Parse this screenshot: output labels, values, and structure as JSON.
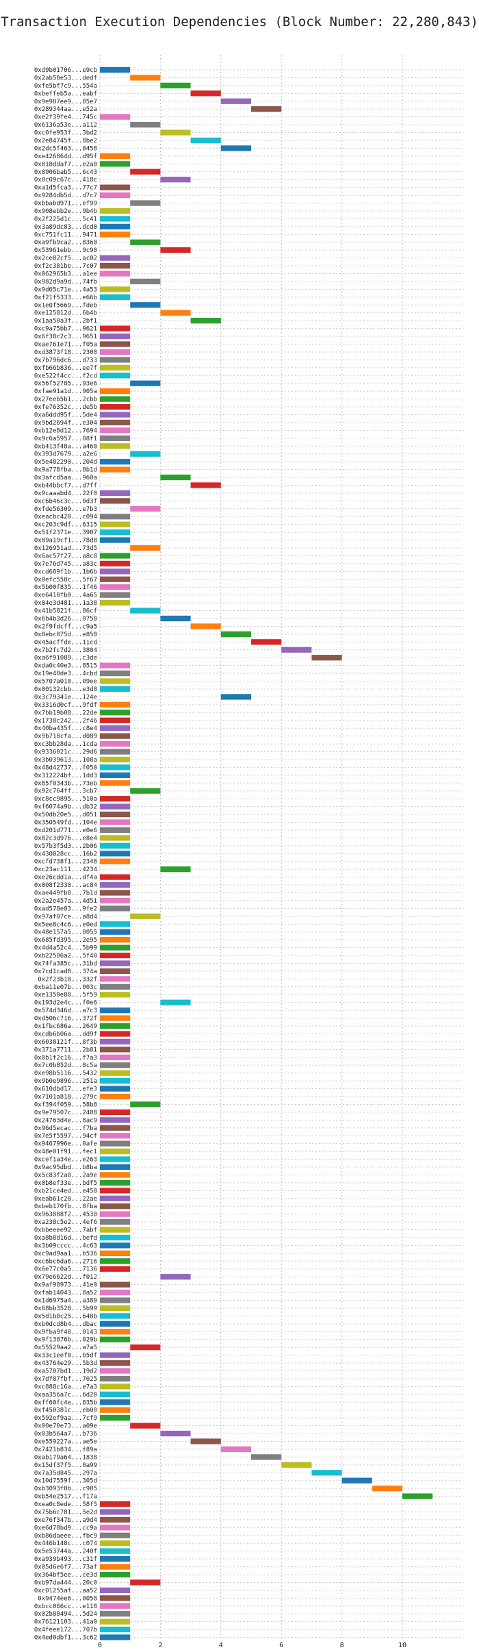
{
  "chart_data": {
    "type": "gantt",
    "title": "Transaction Execution Dependencies (Block Number: 22,280,843)",
    "xlabel": "",
    "ylabel": "",
    "xlim": [
      0,
      11.8
    ],
    "xticks": [
      0,
      2,
      4,
      6,
      8,
      10
    ],
    "grid": true,
    "legend": "none",
    "transactions": [
      [
        "0xd9b01706...e9cb",
        0
      ],
      [
        "0x2ab50e53...dedf",
        1
      ],
      [
        "0xfe5bf7c9...554a",
        2
      ],
      [
        "0xbeffeb5a...eabf",
        3
      ],
      [
        "0x9e987ee9...85e7",
        4
      ],
      [
        "0x289344aa...e52a",
        5
      ],
      [
        "0xe2f39fe4...745c",
        0
      ],
      [
        "0x6136a53e...a112",
        1
      ],
      [
        "0xc0fe953f...3bd2",
        2
      ],
      [
        "0x2e84745f...8be2",
        3
      ],
      [
        "0x2dc5f463...0458",
        4
      ],
      [
        "0xe426864d...d95f",
        0
      ],
      [
        "0x818ddaf7...e2a0",
        0
      ],
      [
        "0x8906bab5...6c43",
        1
      ],
      [
        "0x8c09c67c...418c",
        2
      ],
      [
        "0xa1d5fca3...77c7",
        0
      ],
      [
        "0x9284db5d...d7c7",
        0
      ],
      [
        "0xbbabd971...ef99",
        1
      ],
      [
        "0x908ebb2e...9b4b",
        0
      ],
      [
        "0x2f225d1c...5c41",
        0
      ],
      [
        "0x3a89dc83...dcd0",
        0
      ],
      [
        "0xc751fc11...9471",
        0
      ],
      [
        "0xa9fb9ca2...8360",
        1
      ],
      [
        "0x53961ebb...9c90",
        2
      ],
      [
        "0x2ce82cf5...ac02",
        0
      ],
      [
        "0xf2c381be...7c07",
        0
      ],
      [
        "0x062965b3...a1ee",
        0
      ],
      [
        "0x982d9a9d...74fb",
        1
      ],
      [
        "0x9d65c71e...4a53",
        0
      ],
      [
        "0xf21f5333...e66b",
        0
      ],
      [
        "0x1e0f5669...fdeb",
        1
      ],
      [
        "0xe125812d...6b4b",
        2
      ],
      [
        "0x1aa50a3f...2bf1",
        3
      ],
      [
        "0xc9a75bb7...9621",
        0
      ],
      [
        "0x6f38c2c3...9651",
        0
      ],
      [
        "0xae761e71...f05a",
        0
      ],
      [
        "0xd3873f18...2300",
        0
      ],
      [
        "0x7b796dc6...d733",
        0
      ],
      [
        "0xfb66b836...ee7f",
        0
      ],
      [
        "0xe522f4cc...f2cd",
        0
      ],
      [
        "0x56f52785...93e6",
        1
      ],
      [
        "0xfae91a1d...905a",
        0
      ],
      [
        "0x27eeb5b1...2cbb",
        0
      ],
      [
        "0xfe76352c...de5b",
        0
      ],
      [
        "0xa6ddd95f...5de4",
        0
      ],
      [
        "0x9bd2694f...e304",
        0
      ],
      [
        "0xb12e8d12...7694",
        0
      ],
      [
        "0x9c6a5957...08f1",
        0
      ],
      [
        "0xb413f48a...a460",
        0
      ],
      [
        "0x393d7679...a2e6",
        1
      ],
      [
        "0x5e482290...204d",
        0
      ],
      [
        "0x9a778fba...8b1d",
        0
      ],
      [
        "0x3afcd5aa...960a",
        2
      ],
      [
        "0xb44bbcf7...d7ff",
        3
      ],
      [
        "0x9caaabd4...22f0",
        0
      ],
      [
        "0xc6b46c3c...0d3f",
        0
      ],
      [
        "0xfde56309...e7b3",
        1
      ],
      [
        "0xeacbc420...c094",
        0
      ],
      [
        "0xc203c9df...6315",
        0
      ],
      [
        "0x51f2371e...3907",
        0
      ],
      [
        "0x89a19cf1...78d8",
        0
      ],
      [
        "0x126951ad...73d5",
        1
      ],
      [
        "0x6ac57f27...a8c8",
        0
      ],
      [
        "0x7e76d745...a83c",
        0
      ],
      [
        "0xcd689f1b...1b6b",
        0
      ],
      [
        "0x0efc558c...5f67",
        0
      ],
      [
        "0x5b00f835...1f46",
        0
      ],
      [
        "0xe6410fb0...4a65",
        0
      ],
      [
        "0x84e3d481...1a38",
        0
      ],
      [
        "0x41b5821f...86cf",
        1
      ],
      [
        "0x6b4b3d26...0750",
        2
      ],
      [
        "0x2f9fdcff...c9a5",
        3
      ],
      [
        "0x8ebc875d...e850",
        4
      ],
      [
        "0x45acffde...11cd",
        5
      ],
      [
        "0x7b2fc7d2...3804",
        6
      ],
      [
        "0xa6f91089...c3de",
        7
      ],
      [
        "0xda0c40e3...8515",
        0
      ],
      [
        "0x19e40de3...4cbd",
        0
      ],
      [
        "0x5707a010...09ee",
        0
      ],
      [
        "0x00132cbb...e3d8",
        0
      ],
      [
        "0x3c79341e...124e",
        4
      ],
      [
        "0x3316d0cf...9fdf",
        0
      ],
      [
        "0x7bb19b08...22de",
        0
      ],
      [
        "0x1738c242...2f46",
        0
      ],
      [
        "0x40ba435f...c8e4",
        0
      ],
      [
        "0x9b718cfa...d089",
        0
      ],
      [
        "0xc3bb28da...1cda",
        0
      ],
      [
        "0x9336021c...29d6",
        0
      ],
      [
        "0x3b039613...108a",
        0
      ],
      [
        "0x48d42737...f050",
        0
      ],
      [
        "0x312224bf...1dd3",
        0
      ],
      [
        "0x85f0343b...73eb",
        0
      ],
      [
        "0x92c764ff...3cb7",
        1
      ],
      [
        "0xc8cc9895...510a",
        0
      ],
      [
        "0xf6074a9b...db32",
        0
      ],
      [
        "0x50db20e5...d051",
        0
      ],
      [
        "0x350549fd...104e",
        0
      ],
      [
        "0xd201d771...e0e6",
        0
      ],
      [
        "0x82c3d976...e8e4",
        0
      ],
      [
        "0x57b3f5d3...2b06",
        0
      ],
      [
        "0x430028cc...16b2",
        0
      ],
      [
        "0xcfd738f1...2348",
        0
      ],
      [
        "0xc23ac111...4234",
        2
      ],
      [
        "0xe26cdd1a...df4a",
        0
      ],
      [
        "0x008f2330...ac84",
        0
      ],
      [
        "0xae449fb8...7b1d",
        0
      ],
      [
        "0x2a2e457a...4d51",
        0
      ],
      [
        "0xad578e83...9fe2",
        0
      ],
      [
        "0x97af07ce...a8d4",
        1
      ],
      [
        "0x5ee8c4c6...e0ed",
        0
      ],
      [
        "0x48e157a5...8055",
        0
      ],
      [
        "0x685fd395...2e95",
        0
      ],
      [
        "0x4d4a52c4...5b99",
        0
      ],
      [
        "0xb22506a2...5f40",
        0
      ],
      [
        "0x74fa385c...31bd",
        0
      ],
      [
        "0x7cd1cad8...374a",
        0
      ],
      [
        "0x2f23b18...332f",
        0
      ],
      [
        "0xba11e07b...003c",
        0
      ],
      [
        "0xe1350e88...5f59",
        0
      ],
      [
        "0x193d2e4c...f0e6",
        2
      ],
      [
        "0x574d346d...a7c3",
        0
      ],
      [
        "0xd506c716...372f",
        0
      ],
      [
        "0x1fbc686a...2649",
        0
      ],
      [
        "0xcdb6b06a...dd9f",
        0
      ],
      [
        "0x6038121f...8f3b",
        0
      ],
      [
        "0x371a7711...2b81",
        0
      ],
      [
        "0x0b1f2c16...f7a3",
        0
      ],
      [
        "0x7c0b852d...8c5a",
        0
      ],
      [
        "0xe98b5116...5432",
        0
      ],
      [
        "0x9b0e9896...251a",
        0
      ],
      [
        "0x610dbd17...efe3",
        0
      ],
      [
        "0x7101a818...279c",
        0
      ],
      [
        "0xf394f059...58b8",
        1
      ],
      [
        "0x9e79507c...2408",
        0
      ],
      [
        "0x24763d4e...8ac9",
        0
      ],
      [
        "0x96d5ecac...f7ba",
        0
      ],
      [
        "0x7e5f5597...94cf",
        0
      ],
      [
        "0x9467996e...0afe",
        0
      ],
      [
        "0x48e01f91...fec1",
        0
      ],
      [
        "0xcef1a34e...e263",
        0
      ],
      [
        "0x9ac95dbd...b8ba",
        0
      ],
      [
        "0x5c83f2a0...2a9e",
        0
      ],
      [
        "0x0b8ef33e...bdf5",
        0
      ],
      [
        "0xb21ce4ed...e458",
        0
      ],
      [
        "0xeab61c20...22ae",
        0
      ],
      [
        "0xbeb170fb...8fba",
        0
      ],
      [
        "0x963888f2...4530",
        0
      ],
      [
        "0xa238c5e2...4ef6",
        0
      ],
      [
        "0xbbeeee92...7abf",
        0
      ],
      [
        "0xa8b8d16d...befd",
        0
      ],
      [
        "0x3b09cccc...4c63",
        0
      ],
      [
        "0xc9ad9aa1...b536",
        0
      ],
      [
        "0xc6bc6da6...2716",
        0
      ],
      [
        "0x6e77c0a5...7136",
        0
      ],
      [
        "0x79e6622d...f012",
        2
      ],
      [
        "0x9af98973...41e0",
        0
      ],
      [
        "0xfab14043...8a52",
        0
      ],
      [
        "0x1d6975a4...a389",
        0
      ],
      [
        "0x68bb3528...5b99",
        0
      ],
      [
        "0x5d1b0c25...648b",
        0
      ],
      [
        "0xb0dcd8b4...dbac",
        0
      ],
      [
        "0x9fba9f48...0143",
        0
      ],
      [
        "0x9f13876b...029b",
        0
      ],
      [
        "0x55529aa2...a7a5",
        1
      ],
      [
        "0x33c1eef0...b5df",
        0
      ],
      [
        "0x43764e29...5b3d",
        0
      ],
      [
        "0xa5707bd1...19d2",
        0
      ],
      [
        "0x7df87fbf...7025",
        0
      ],
      [
        "0xc888c16a...e7a3",
        0
      ],
      [
        "0xaa356a7c...6d20",
        0
      ],
      [
        "0xff60fc4e...835b",
        0
      ],
      [
        "0xf450381c...eb00",
        0
      ],
      [
        "0x592ef9aa...7cf9",
        0
      ],
      [
        "0x00e70e73...a09e",
        1
      ],
      [
        "0x03b564a7...b736",
        2
      ],
      [
        "0xe559227a...ae5e",
        3
      ],
      [
        "0x7421b834...f89a",
        4
      ],
      [
        "0xab179a64...1838",
        5
      ],
      [
        "0x15df37f5...0a99",
        6
      ],
      [
        "0x7a35d845...297a",
        7
      ],
      [
        "0x10d7559f...305d",
        8
      ],
      [
        "0xb3093f0b...c905",
        9
      ],
      [
        "0xb54e2517...f17a",
        10
      ],
      [
        "0xea0c8ede...58f5",
        0
      ],
      [
        "0x75b6c781...5e2d",
        0
      ],
      [
        "0xe76f347b...a9d4",
        0
      ],
      [
        "0xe6d78bd9...cc9a",
        0
      ],
      [
        "0xb86daeee...fbc9",
        0
      ],
      [
        "0x446b148c...c074",
        0
      ],
      [
        "0x5e53744a...240f",
        0
      ],
      [
        "0xa939b493...c31f",
        0
      ],
      [
        "0x05d6e6f7...73af",
        0
      ],
      [
        "0x364bf5ee...ce3d",
        0
      ],
      [
        "0xb97da444...20c0",
        1
      ],
      [
        "0xc01255af...aa52",
        0
      ],
      [
        "0x9474ee6...0058",
        0
      ],
      [
        "0xbcc066cc...e118",
        0
      ],
      [
        "0x02b88494...5d24",
        0
      ],
      [
        "0x76121103...41a0",
        0
      ],
      [
        "0x4feee172...707b",
        0
      ],
      [
        "0x4ed0dbf1...3c62",
        0
      ]
    ],
    "palette": [
      "#1f77b4",
      "#ff7f0e",
      "#2ca02c",
      "#d62728",
      "#9467bd",
      "#8c564b",
      "#e377c2",
      "#7f7f7f",
      "#bcbd22",
      "#17becf"
    ]
  }
}
